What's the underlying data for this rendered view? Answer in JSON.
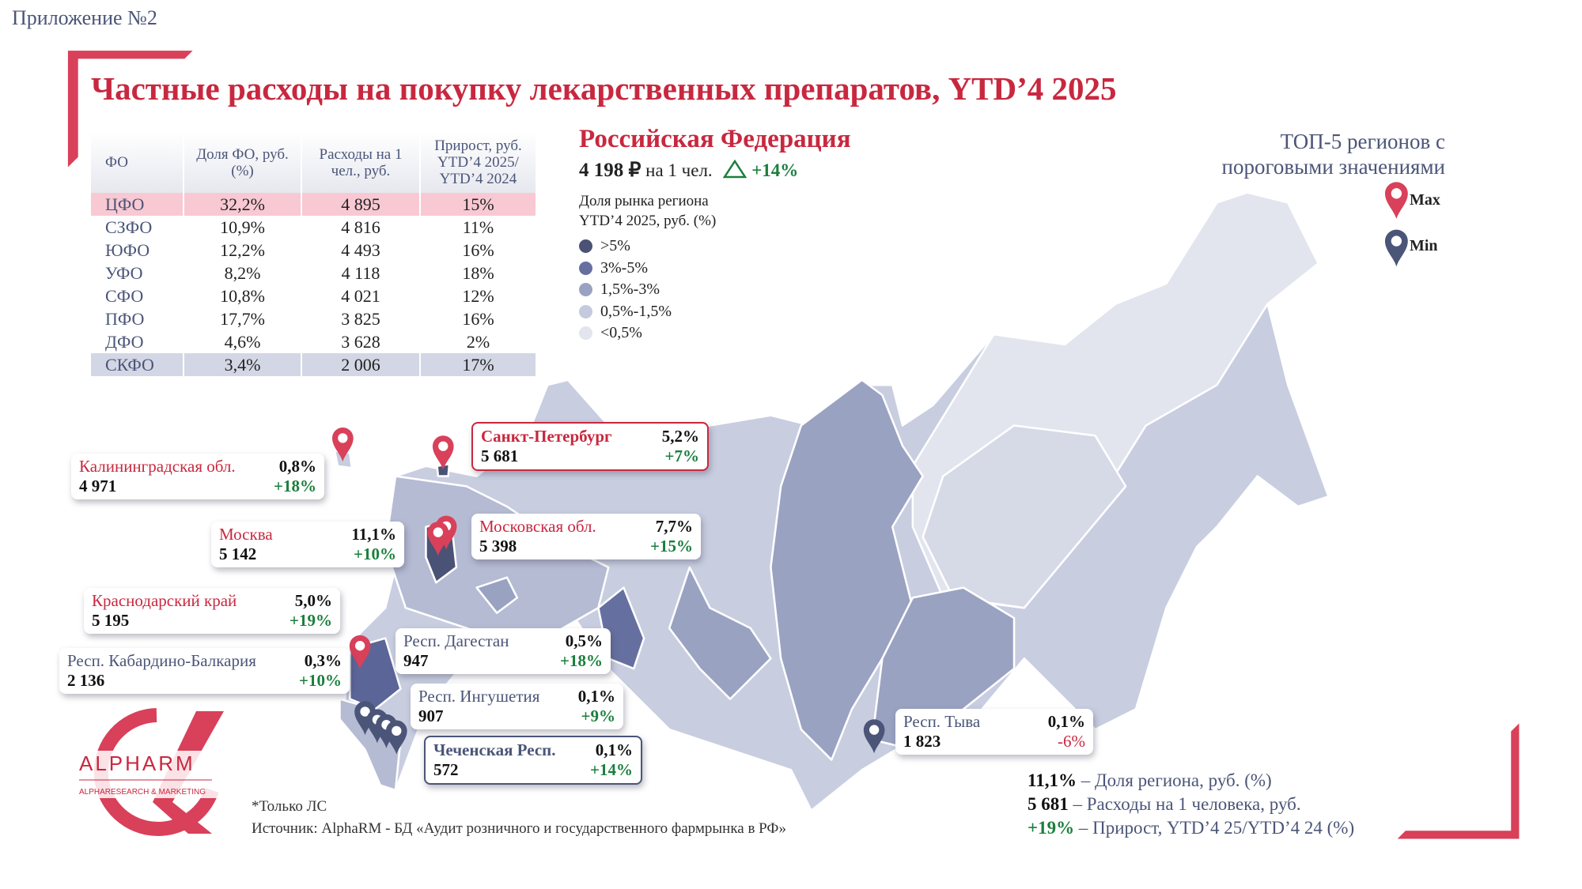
{
  "appendix_label": "Приложение №2",
  "title": "Частные расходы на покупку лекарственных препаратов, YTD’4 2025",
  "table": {
    "headers": [
      "ФО",
      "Доля ФО, руб. (%)",
      "Расходы на 1 чел., руб.",
      "Прирост, руб. YTD’4 2025/ YTD’4 2024"
    ],
    "rows": [
      {
        "fo": "ЦФО",
        "share": "32,2%",
        "spend": "4 895",
        "growth": "15%",
        "highlight": "max"
      },
      {
        "fo": "СЗФО",
        "share": "10,9%",
        "spend": "4 816",
        "growth": "11%",
        "highlight": ""
      },
      {
        "fo": "ЮФО",
        "share": "12,2%",
        "spend": "4 493",
        "growth": "16%",
        "highlight": ""
      },
      {
        "fo": "УФО",
        "share": "8,2%",
        "spend": "4 118",
        "growth": "18%",
        "highlight": ""
      },
      {
        "fo": "СФО",
        "share": "10,8%",
        "spend": "4 021",
        "growth": "12%",
        "highlight": ""
      },
      {
        "fo": "ПФО",
        "share": "17,7%",
        "spend": "3 825",
        "growth": "16%",
        "highlight": ""
      },
      {
        "fo": "ДФО",
        "share": "4,6%",
        "spend": "3 628",
        "growth": "2%",
        "highlight": ""
      },
      {
        "fo": "СКФО",
        "share": "3,4%",
        "spend": "2 006",
        "growth": "17%",
        "highlight": "min"
      }
    ]
  },
  "russia": {
    "title": "Российская Федерация",
    "spend": "4 198 ₽",
    "spend_suffix": "на 1 чел.",
    "growth": "+14%",
    "legend_title_1": "Доля рынка региона",
    "legend_title_2": "YTD’4 2025, руб. (%)",
    "legend": [
      {
        "label": ">5%",
        "color": "#4a5275"
      },
      {
        "label": "3%-5%",
        "color": "#6670a0"
      },
      {
        "label": "1,5%-3%",
        "color": "#9aa2c2"
      },
      {
        "label": "0,5%-1,5%",
        "color": "#c5cade"
      },
      {
        "label": "<0,5%",
        "color": "#e2e5ee"
      }
    ]
  },
  "top5": {
    "line1": "ТОП-5 регионов с",
    "line2": "пороговыми значениями",
    "max_label": "Max",
    "min_label": "Min",
    "max_color": "#d9405a",
    "min_color": "#4b5578"
  },
  "callouts": [
    {
      "name": "Калининградская обл.",
      "share": "0,8%",
      "spend": "4 971",
      "growth": "+18%",
      "type": "max"
    },
    {
      "name": "Санкт-Петербург",
      "share": "5,2%",
      "spend": "5 681",
      "growth": "+7%",
      "type": "max"
    },
    {
      "name": "Москва",
      "share": "11,1%",
      "spend": "5 142",
      "growth": "+10%",
      "type": "max"
    },
    {
      "name": "Московская обл.",
      "share": "7,7%",
      "spend": "5 398",
      "growth": "+15%",
      "type": "max"
    },
    {
      "name": "Краснодарский край",
      "share": "5,0%",
      "spend": "5 195",
      "growth": "+19%",
      "type": "max"
    },
    {
      "name": "Респ. Дагестан",
      "share": "0,5%",
      "spend": "947",
      "growth": "+18%",
      "type": "min"
    },
    {
      "name": "Респ. Кабардино-Балкария",
      "share": "0,3%",
      "spend": "2 136",
      "growth": "+10%",
      "type": "min"
    },
    {
      "name": "Респ. Ингушетия",
      "share": "0,1%",
      "spend": "907",
      "growth": "+9%",
      "type": "min"
    },
    {
      "name": "Чеченская Респ.",
      "share": "0,1%",
      "spend": "572",
      "growth": "+14%",
      "type": "min"
    },
    {
      "name": "Респ. Тыва",
      "share": "0,1%",
      "spend": "1 823",
      "growth": "-6%",
      "type": "min"
    }
  ],
  "key": [
    {
      "value": "11,1%",
      "text": "– Доля региона, руб. (%)"
    },
    {
      "value": "5 681",
      "text": "– Расходы на 1 человека, руб."
    },
    {
      "value": "+19%",
      "text": "– Прирост, YTD’4 25/YTD’4 24 (%)"
    }
  ],
  "footnote": "*Только ЛС",
  "source": "Источник: AlphaRM - БД «Аудит розничного и государственного фармрынка в РФ»",
  "logo": {
    "name": "ALPHARM",
    "tagline": "ALPHARESEARCH & MARKETING"
  },
  "accent_color": "#c8283f"
}
